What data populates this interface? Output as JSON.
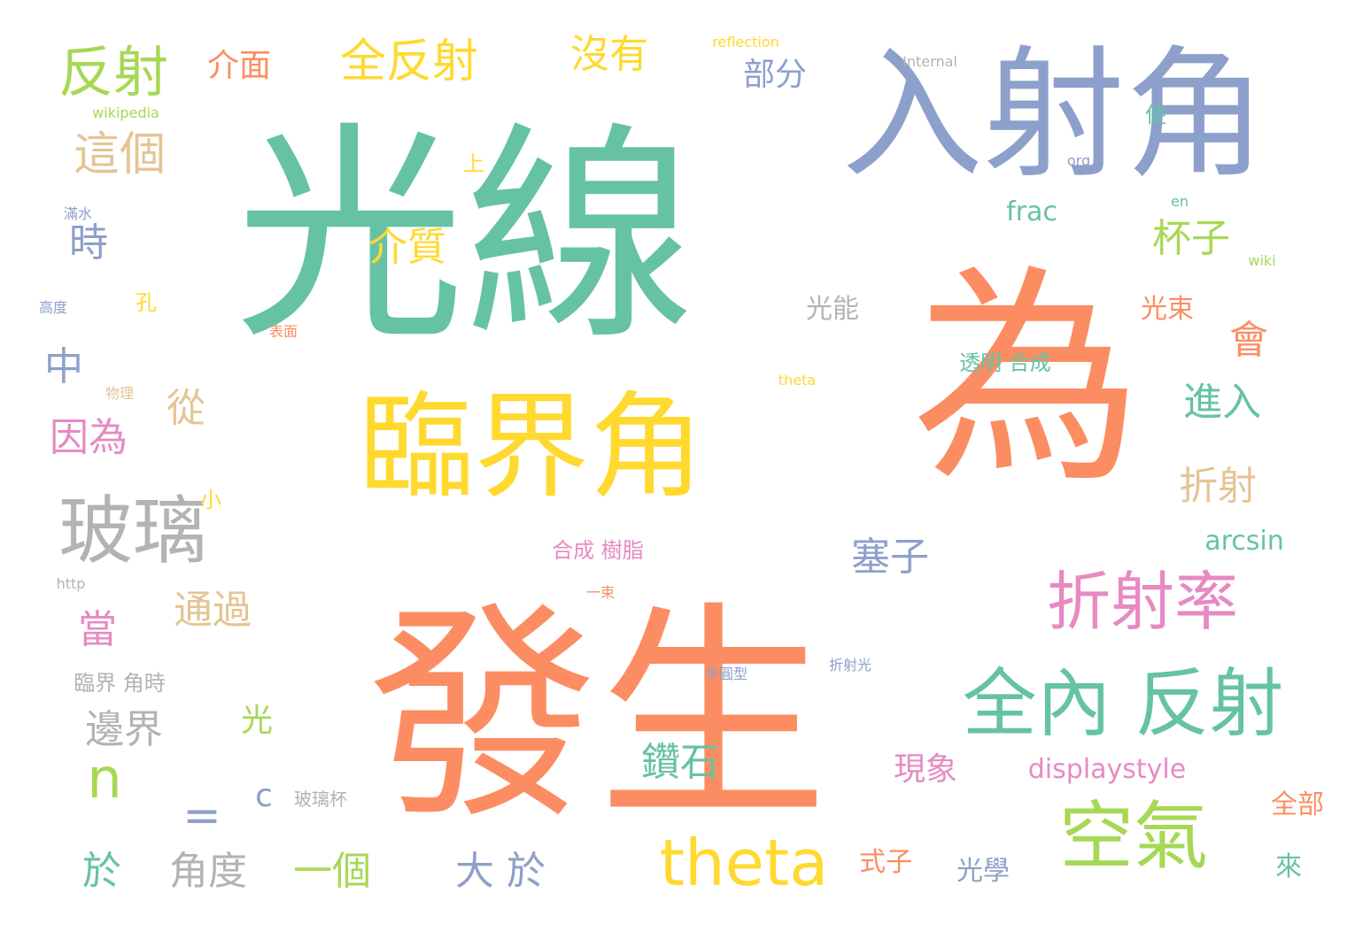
{
  "word_cloud": {
    "words": [
      "光線",
      "為",
      "發生",
      "入射角",
      "臨界角",
      "全內 反射",
      "折射率",
      "空氣",
      "玻璃",
      "theta",
      "反射",
      "全反射",
      "沒有",
      "介面",
      "部分",
      "這個",
      "時",
      "中",
      "因為",
      "從",
      "介質",
      "會",
      "杯子",
      "折射",
      "進入",
      "光束",
      "光能",
      "塞子",
      "當",
      "通過",
      "邊界",
      "n",
      "=",
      "c",
      "玻璃杯",
      "於",
      "角度",
      "一個",
      "大 於",
      "光",
      "鑽石",
      "現象",
      "displaystyle",
      "arcsin",
      "frac",
      "全部",
      "來",
      "光學",
      "式子",
      "透明 合成",
      "合成 樹脂",
      "臨界 角時",
      "上",
      "孔",
      "小",
      "使",
      "高度",
      "滿水",
      "物理",
      "表面",
      "一束",
      "半圓型",
      "折射光",
      "reflection",
      "Internal",
      "wikipedia",
      "http",
      "en",
      "org",
      "wiki",
      "theta"
    ]
  }
}
